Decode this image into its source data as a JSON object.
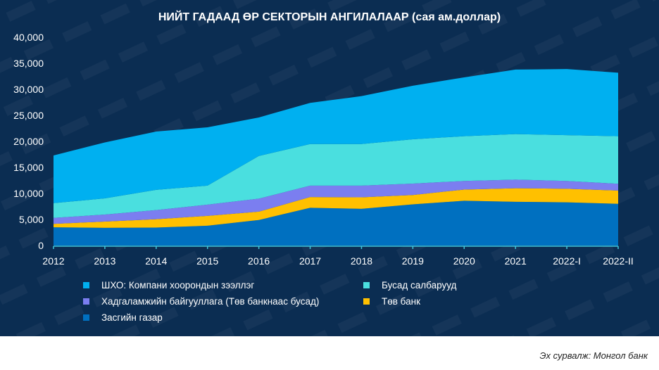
{
  "source": "Эх сурвалж: Монгол банк",
  "chart_data": {
    "type": "area",
    "stacked": true,
    "title": "НИЙТ ГАДААД ӨР СЕКТОРЫН АНГИЛАЛААР (сая ам.доллар)",
    "xlabel": "",
    "ylabel": "",
    "ylim": [
      0,
      40000
    ],
    "yticks": [
      "0",
      "5,000",
      "10,000",
      "15,000",
      "20,000",
      "25,000",
      "30,000",
      "35,000",
      "40,000"
    ],
    "categories": [
      "2012",
      "2013",
      "2014",
      "2015",
      "2016",
      "2017",
      "2018",
      "2019",
      "2020",
      "2021",
      "2022-I",
      "2022-II"
    ],
    "legend_position": "bottom",
    "series": [
      {
        "name": "Засгийн газар",
        "color": "#0070c0",
        "values": [
          3500,
          3400,
          3450,
          3800,
          4900,
          7250,
          7050,
          7900,
          8600,
          8400,
          8300,
          8000
        ]
      },
      {
        "name": "Төв банк",
        "color": "#ffc000",
        "values": [
          650,
          1200,
          1600,
          1900,
          1600,
          2050,
          2200,
          1800,
          2150,
          2600,
          2600,
          2550
        ]
      },
      {
        "name": "Хадгаламжийн байгууллага (Төв банкнаас бусад)",
        "color": "#7b7ef0",
        "values": [
          1150,
          1350,
          1750,
          2150,
          2500,
          2200,
          2250,
          2200,
          1650,
          1650,
          1500,
          1300
        ]
      },
      {
        "name": "Бусад салбарууд",
        "color": "#4adfdf",
        "values": [
          2850,
          3100,
          3900,
          3650,
          8200,
          8000,
          8000,
          8500,
          8600,
          8750,
          8800,
          9150
        ]
      },
      {
        "name": "ШХО: Компани хоорондын зээллэг",
        "color": "#00b0f0",
        "values": [
          9150,
          10750,
          11200,
          11200,
          7400,
          7900,
          9200,
          10300,
          11300,
          12400,
          12700,
          12200
        ]
      }
    ],
    "legend_order": [
      4,
      3,
      2,
      1,
      0
    ]
  }
}
